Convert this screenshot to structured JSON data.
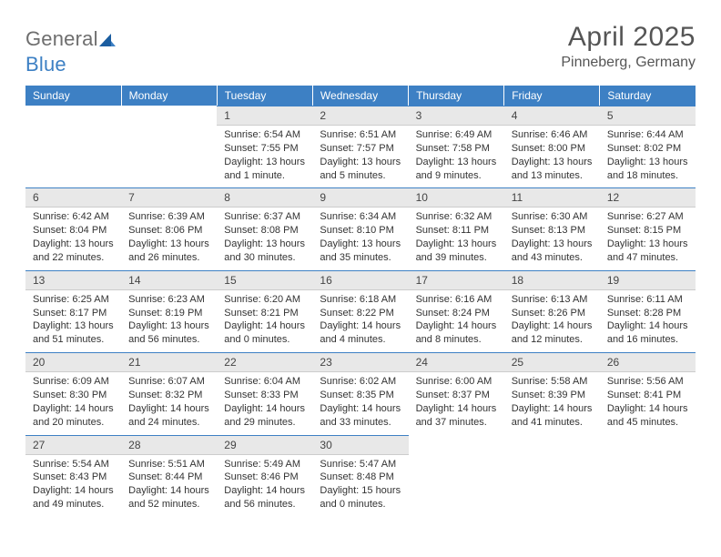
{
  "logo": {
    "text1": "General",
    "text2": "Blue"
  },
  "title": "April 2025",
  "location": "Pinneberg, Germany",
  "header_bg": "#3d80c4",
  "header_text_color": "#ffffff",
  "daynum_bg": "#e8e8e8",
  "border_top_color": "#3d80c4",
  "body_bg": "#ffffff",
  "text_color": "#333333",
  "weekdays": [
    "Sunday",
    "Monday",
    "Tuesday",
    "Wednesday",
    "Thursday",
    "Friday",
    "Saturday"
  ],
  "weeks": [
    [
      null,
      null,
      {
        "n": "1",
        "sunrise": "6:54 AM",
        "sunset": "7:55 PM",
        "daylight": "13 hours and 1 minute."
      },
      {
        "n": "2",
        "sunrise": "6:51 AM",
        "sunset": "7:57 PM",
        "daylight": "13 hours and 5 minutes."
      },
      {
        "n": "3",
        "sunrise": "6:49 AM",
        "sunset": "7:58 PM",
        "daylight": "13 hours and 9 minutes."
      },
      {
        "n": "4",
        "sunrise": "6:46 AM",
        "sunset": "8:00 PM",
        "daylight": "13 hours and 13 minutes."
      },
      {
        "n": "5",
        "sunrise": "6:44 AM",
        "sunset": "8:02 PM",
        "daylight": "13 hours and 18 minutes."
      }
    ],
    [
      {
        "n": "6",
        "sunrise": "6:42 AM",
        "sunset": "8:04 PM",
        "daylight": "13 hours and 22 minutes."
      },
      {
        "n": "7",
        "sunrise": "6:39 AM",
        "sunset": "8:06 PM",
        "daylight": "13 hours and 26 minutes."
      },
      {
        "n": "8",
        "sunrise": "6:37 AM",
        "sunset": "8:08 PM",
        "daylight": "13 hours and 30 minutes."
      },
      {
        "n": "9",
        "sunrise": "6:34 AM",
        "sunset": "8:10 PM",
        "daylight": "13 hours and 35 minutes."
      },
      {
        "n": "10",
        "sunrise": "6:32 AM",
        "sunset": "8:11 PM",
        "daylight": "13 hours and 39 minutes."
      },
      {
        "n": "11",
        "sunrise": "6:30 AM",
        "sunset": "8:13 PM",
        "daylight": "13 hours and 43 minutes."
      },
      {
        "n": "12",
        "sunrise": "6:27 AM",
        "sunset": "8:15 PM",
        "daylight": "13 hours and 47 minutes."
      }
    ],
    [
      {
        "n": "13",
        "sunrise": "6:25 AM",
        "sunset": "8:17 PM",
        "daylight": "13 hours and 51 minutes."
      },
      {
        "n": "14",
        "sunrise": "6:23 AM",
        "sunset": "8:19 PM",
        "daylight": "13 hours and 56 minutes."
      },
      {
        "n": "15",
        "sunrise": "6:20 AM",
        "sunset": "8:21 PM",
        "daylight": "14 hours and 0 minutes."
      },
      {
        "n": "16",
        "sunrise": "6:18 AM",
        "sunset": "8:22 PM",
        "daylight": "14 hours and 4 minutes."
      },
      {
        "n": "17",
        "sunrise": "6:16 AM",
        "sunset": "8:24 PM",
        "daylight": "14 hours and 8 minutes."
      },
      {
        "n": "18",
        "sunrise": "6:13 AM",
        "sunset": "8:26 PM",
        "daylight": "14 hours and 12 minutes."
      },
      {
        "n": "19",
        "sunrise": "6:11 AM",
        "sunset": "8:28 PM",
        "daylight": "14 hours and 16 minutes."
      }
    ],
    [
      {
        "n": "20",
        "sunrise": "6:09 AM",
        "sunset": "8:30 PM",
        "daylight": "14 hours and 20 minutes."
      },
      {
        "n": "21",
        "sunrise": "6:07 AM",
        "sunset": "8:32 PM",
        "daylight": "14 hours and 24 minutes."
      },
      {
        "n": "22",
        "sunrise": "6:04 AM",
        "sunset": "8:33 PM",
        "daylight": "14 hours and 29 minutes."
      },
      {
        "n": "23",
        "sunrise": "6:02 AM",
        "sunset": "8:35 PM",
        "daylight": "14 hours and 33 minutes."
      },
      {
        "n": "24",
        "sunrise": "6:00 AM",
        "sunset": "8:37 PM",
        "daylight": "14 hours and 37 minutes."
      },
      {
        "n": "25",
        "sunrise": "5:58 AM",
        "sunset": "8:39 PM",
        "daylight": "14 hours and 41 minutes."
      },
      {
        "n": "26",
        "sunrise": "5:56 AM",
        "sunset": "8:41 PM",
        "daylight": "14 hours and 45 minutes."
      }
    ],
    [
      {
        "n": "27",
        "sunrise": "5:54 AM",
        "sunset": "8:43 PM",
        "daylight": "14 hours and 49 minutes."
      },
      {
        "n": "28",
        "sunrise": "5:51 AM",
        "sunset": "8:44 PM",
        "daylight": "14 hours and 52 minutes."
      },
      {
        "n": "29",
        "sunrise": "5:49 AM",
        "sunset": "8:46 PM",
        "daylight": "14 hours and 56 minutes."
      },
      {
        "n": "30",
        "sunrise": "5:47 AM",
        "sunset": "8:48 PM",
        "daylight": "15 hours and 0 minutes."
      },
      null,
      null,
      null
    ]
  ],
  "labels": {
    "sunrise": "Sunrise:",
    "sunset": "Sunset:",
    "daylight": "Daylight:"
  }
}
